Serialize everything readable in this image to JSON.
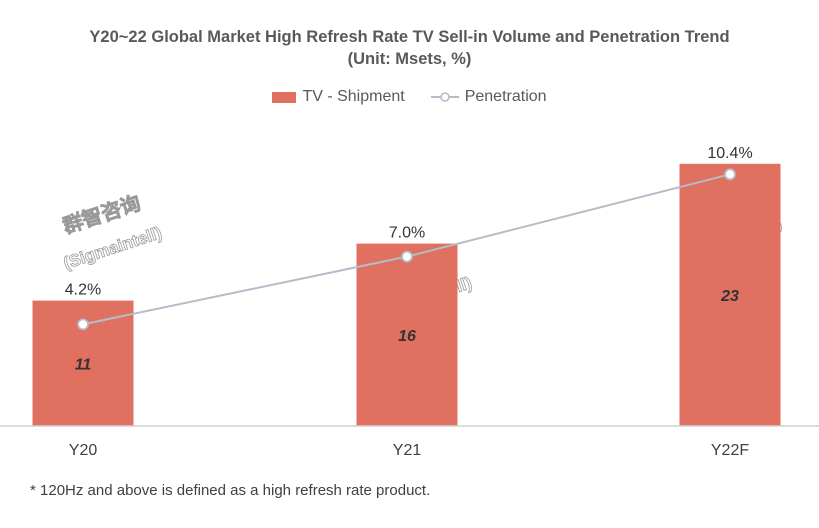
{
  "chart_data": {
    "type": "bar",
    "title": "Y20~22 Global Market High Refresh Rate TV Sell-in Volume and Penetration Trend",
    "subtitle": "(Unit: Msets, %)",
    "categories": [
      "Y20",
      "Y21",
      "Y22F"
    ],
    "series": [
      {
        "name": "TV - Shipment",
        "type": "bar",
        "values": [
          11,
          16,
          23
        ],
        "labels": [
          "11",
          "16",
          "23"
        ],
        "color": "#E07060"
      },
      {
        "name": "Penetration",
        "type": "line",
        "values": [
          4.2,
          7.0,
          10.4
        ],
        "labels": [
          "4.2%",
          "7.0%",
          "10.4%"
        ],
        "color": "#B4BCC8"
      }
    ],
    "legend": "top-center",
    "grid": false
  },
  "footnote": "* 120Hz and above is defined as a high refresh rate product.",
  "watermark": {
    "cn": "群智咨询",
    "en": "(Sigmaintell)"
  }
}
